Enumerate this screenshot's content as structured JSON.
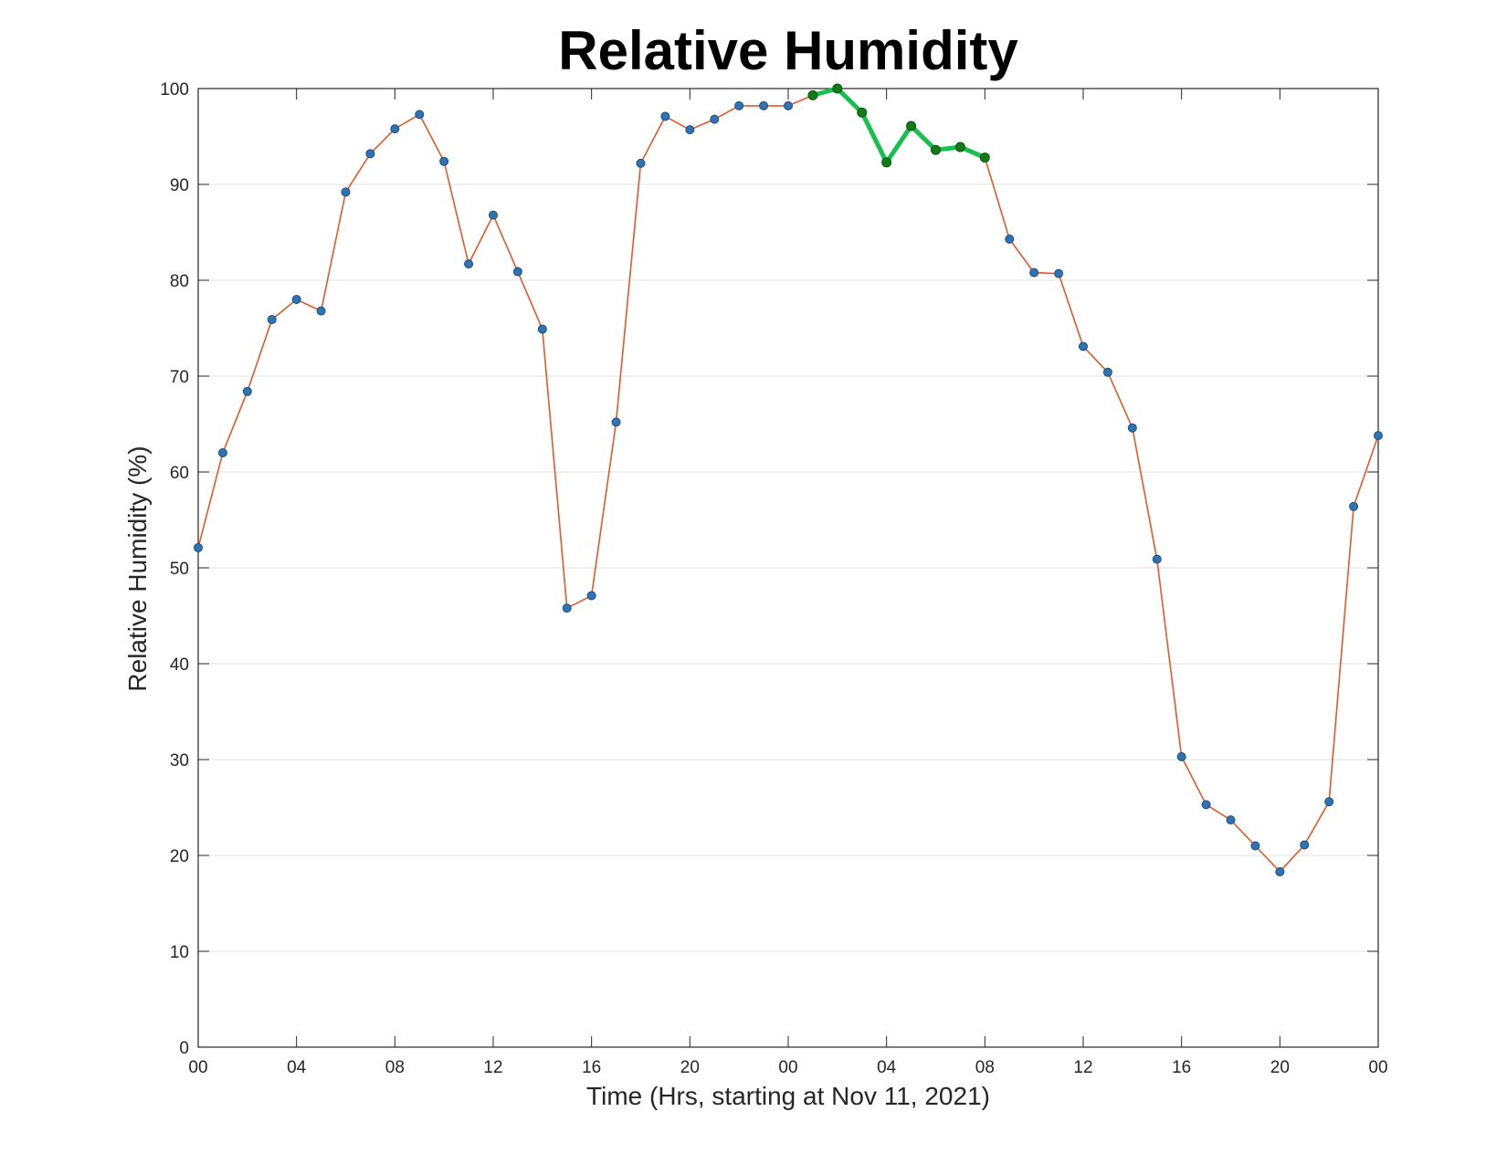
{
  "chart_data": {
    "type": "line",
    "title": "Relative Humidity",
    "xlabel": "Time (Hrs, starting at Nov 11, 2021)",
    "ylabel": "Relative Humidity (%)",
    "x_start": "2021-11-11T00:00",
    "x_step_hours": 1,
    "xlim_hours": [
      0,
      48
    ],
    "ylim": [
      0,
      100
    ],
    "xtick_hours": [
      0,
      4,
      8,
      12,
      16,
      20,
      24,
      28,
      32,
      36,
      40,
      44,
      48
    ],
    "xtick_labels": [
      "00",
      "04",
      "08",
      "12",
      "16",
      "20",
      "00",
      "04",
      "08",
      "12",
      "16",
      "20",
      "00"
    ],
    "yticks": [
      0,
      10,
      20,
      30,
      40,
      50,
      60,
      70,
      80,
      90,
      100
    ],
    "grid": "horizontal",
    "series": [
      {
        "values": [
          52.1,
          62.0,
          68.4,
          75.9,
          78.0,
          76.8,
          89.2,
          93.2,
          95.8,
          97.3,
          92.4,
          81.7,
          86.8,
          80.9,
          74.9,
          45.8,
          47.1,
          65.2,
          92.2,
          97.1,
          95.7,
          96.8,
          98.2,
          98.2,
          98.2,
          99.3,
          100.0,
          97.5,
          92.3,
          96.1,
          93.6,
          93.9,
          92.8,
          84.3,
          80.8,
          80.7,
          73.1,
          70.4,
          64.6,
          50.9,
          30.3,
          25.3,
          23.7,
          21.0,
          18.3,
          21.1,
          25.6,
          56.4,
          63.8
        ]
      }
    ],
    "highlight_range_hours": [
      25,
      32
    ],
    "colors": {
      "line": "#e2592a",
      "marker": "#2e73b5",
      "marker_edge": "#1f4e79",
      "highlight_line": "#15c04e",
      "highlight_marker": "#127a17",
      "grid": "#e3e3e3",
      "axes": "#262626"
    }
  }
}
